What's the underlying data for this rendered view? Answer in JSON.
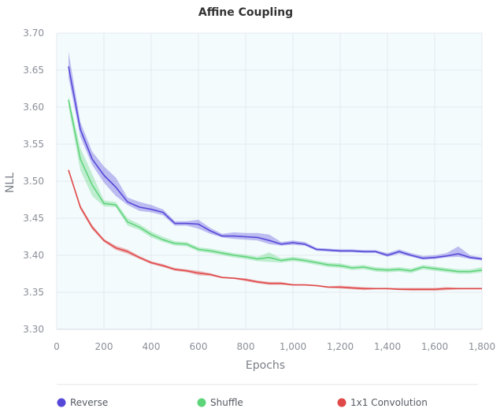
{
  "chart_data": {
    "type": "line",
    "title": "Affine Coupling",
    "xlabel": "Epochs",
    "ylabel": "NLL",
    "xlim": [
      0,
      1800
    ],
    "ylim": [
      3.3,
      3.7
    ],
    "xticks": [
      0,
      200,
      400,
      600,
      800,
      1000,
      1200,
      1400,
      1600,
      1800
    ],
    "xtick_labels": [
      "0",
      "200",
      "400",
      "600",
      "800",
      "1,000",
      "1,200",
      "1,400",
      "1,600",
      "1,800"
    ],
    "yticks": [
      3.3,
      3.35,
      3.4,
      3.45,
      3.5,
      3.55,
      3.6,
      3.65,
      3.7
    ],
    "ytick_labels": [
      "3.30",
      "3.35",
      "3.40",
      "3.45",
      "3.50",
      "3.55",
      "3.60",
      "3.65",
      "3.70"
    ],
    "grid": true,
    "legend_position": "bottom",
    "plot_background": "#f3fbfd",
    "x": [
      50,
      100,
      150,
      200,
      250,
      300,
      350,
      400,
      450,
      500,
      550,
      600,
      650,
      700,
      750,
      800,
      850,
      900,
      950,
      1000,
      1050,
      1100,
      1150,
      1200,
      1250,
      1300,
      1350,
      1400,
      1450,
      1500,
      1550,
      1600,
      1650,
      1700,
      1750,
      1800
    ],
    "series": [
      {
        "name": "Reverse",
        "color": "#5548d9",
        "values": [
          3.655,
          3.57,
          3.53,
          3.508,
          3.492,
          3.472,
          3.465,
          3.462,
          3.458,
          3.443,
          3.443,
          3.442,
          3.433,
          3.426,
          3.426,
          3.425,
          3.424,
          3.42,
          3.415,
          3.417,
          3.415,
          3.408,
          3.407,
          3.406,
          3.406,
          3.405,
          3.405,
          3.4,
          3.405,
          3.4,
          3.396,
          3.397,
          3.399,
          3.402,
          3.397,
          3.395
        ],
        "lower": [
          3.64,
          3.56,
          3.522,
          3.498,
          3.48,
          3.468,
          3.46,
          3.458,
          3.454,
          3.44,
          3.44,
          3.436,
          3.429,
          3.424,
          3.422,
          3.421,
          3.42,
          3.415,
          3.413,
          3.414,
          3.413,
          3.406,
          3.405,
          3.404,
          3.404,
          3.403,
          3.403,
          3.398,
          3.402,
          3.398,
          3.394,
          3.395,
          3.397,
          3.398,
          3.395,
          3.393
        ],
        "upper": [
          3.675,
          3.58,
          3.54,
          3.52,
          3.505,
          3.478,
          3.472,
          3.468,
          3.462,
          3.446,
          3.446,
          3.448,
          3.437,
          3.429,
          3.431,
          3.43,
          3.43,
          3.428,
          3.418,
          3.42,
          3.418,
          3.41,
          3.409,
          3.408,
          3.408,
          3.407,
          3.407,
          3.403,
          3.408,
          3.403,
          3.399,
          3.4,
          3.403,
          3.412,
          3.4,
          3.397
        ]
      },
      {
        "name": "Shuffle",
        "color": "#5ed47a",
        "values": [
          3.61,
          3.53,
          3.495,
          3.47,
          3.468,
          3.445,
          3.438,
          3.428,
          3.421,
          3.416,
          3.415,
          3.408,
          3.406,
          3.403,
          3.4,
          3.398,
          3.395,
          3.397,
          3.393,
          3.395,
          3.393,
          3.39,
          3.387,
          3.386,
          3.383,
          3.384,
          3.381,
          3.38,
          3.381,
          3.379,
          3.384,
          3.382,
          3.38,
          3.378,
          3.378,
          3.38
        ],
        "lower": [
          3.6,
          3.515,
          3.48,
          3.466,
          3.465,
          3.44,
          3.434,
          3.424,
          3.418,
          3.413,
          3.412,
          3.405,
          3.403,
          3.4,
          3.397,
          3.395,
          3.392,
          3.391,
          3.39,
          3.392,
          3.39,
          3.387,
          3.384,
          3.383,
          3.38,
          3.381,
          3.378,
          3.377,
          3.378,
          3.376,
          3.381,
          3.379,
          3.377,
          3.375,
          3.375,
          3.377
        ],
        "upper": [
          3.615,
          3.545,
          3.51,
          3.474,
          3.472,
          3.45,
          3.442,
          3.432,
          3.425,
          3.419,
          3.418,
          3.411,
          3.409,
          3.406,
          3.403,
          3.401,
          3.398,
          3.404,
          3.396,
          3.398,
          3.396,
          3.393,
          3.39,
          3.389,
          3.386,
          3.387,
          3.384,
          3.383,
          3.384,
          3.382,
          3.387,
          3.385,
          3.383,
          3.381,
          3.381,
          3.384
        ]
      },
      {
        "name": "1x1 Convolution",
        "color": "#e04848",
        "values": [
          3.515,
          3.465,
          3.438,
          3.42,
          3.41,
          3.405,
          3.397,
          3.39,
          3.386,
          3.381,
          3.379,
          3.376,
          3.374,
          3.37,
          3.369,
          3.367,
          3.364,
          3.362,
          3.362,
          3.36,
          3.36,
          3.359,
          3.357,
          3.357,
          3.356,
          3.355,
          3.355,
          3.355,
          3.354,
          3.354,
          3.354,
          3.354,
          3.355,
          3.355,
          3.355,
          3.355
        ],
        "lower": [
          3.513,
          3.462,
          3.435,
          3.418,
          3.407,
          3.402,
          3.395,
          3.388,
          3.384,
          3.379,
          3.377,
          3.373,
          3.372,
          3.369,
          3.368,
          3.365,
          3.362,
          3.36,
          3.36,
          3.359,
          3.359,
          3.358,
          3.356,
          3.355,
          3.354,
          3.353,
          3.354,
          3.354,
          3.353,
          3.352,
          3.352,
          3.352,
          3.353,
          3.354,
          3.354,
          3.354
        ],
        "upper": [
          3.517,
          3.468,
          3.441,
          3.422,
          3.413,
          3.408,
          3.399,
          3.392,
          3.388,
          3.383,
          3.381,
          3.379,
          3.376,
          3.371,
          3.37,
          3.369,
          3.366,
          3.364,
          3.364,
          3.361,
          3.361,
          3.36,
          3.358,
          3.359,
          3.358,
          3.357,
          3.356,
          3.356,
          3.356,
          3.356,
          3.356,
          3.356,
          3.357,
          3.356,
          3.356,
          3.356
        ]
      }
    ]
  }
}
